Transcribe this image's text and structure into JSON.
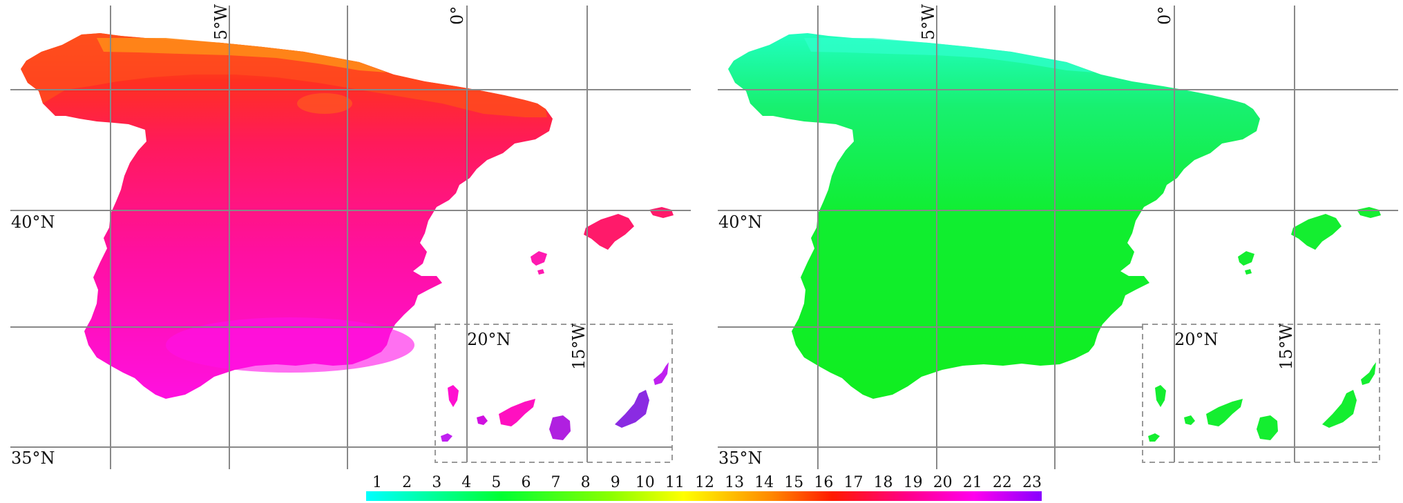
{
  "maps": [
    {
      "panel": "left",
      "palette": "warm",
      "lat_labels": [
        "40°N",
        "35°N"
      ],
      "lon_labels": [
        "5°W",
        "0°"
      ],
      "inset": {
        "lat_label": "20°N",
        "lon_label": "15°W"
      }
    },
    {
      "panel": "right",
      "palette": "green",
      "lat_labels": [
        "40°N",
        "35°N"
      ],
      "lon_labels": [
        "5°W",
        "0°"
      ],
      "inset": {
        "lat_label": "20°N",
        "lon_label": "15°W"
      }
    }
  ],
  "colorbar": {
    "ticks": [
      "1",
      "2",
      "3",
      "4",
      "5",
      "6",
      "7",
      "8",
      "9",
      "10",
      "11",
      "12",
      "13",
      "14",
      "15",
      "16",
      "17",
      "18",
      "19",
      "20",
      "21",
      "22",
      "23"
    ],
    "colors": [
      "#00ffff",
      "#00ffcc",
      "#00ff88",
      "#00ff44",
      "#00ff00",
      "#44ff00",
      "#88ff00",
      "#ccff00",
      "#ffff00",
      "#ffcc00",
      "#ff9900",
      "#ff6600",
      "#ff3300",
      "#ff0033",
      "#ff0066",
      "#ff00aa",
      "#ff00dd",
      "#dd00ff",
      "#aa00ff",
      "#8800ff"
    ]
  },
  "colors": {
    "grid": "#888888",
    "inset_border": "#999999",
    "left_main": "#ff1a8c",
    "left_north": "#ff3a2a",
    "left_coast": "#ff7f1a",
    "left_south": "#ff10d0",
    "left_canary": "#c020f0",
    "left_canary_east": "#8a2be2",
    "right_main": "#12f03a",
    "right_north": "#20f0a0",
    "right_coast": "#33ffcc"
  }
}
